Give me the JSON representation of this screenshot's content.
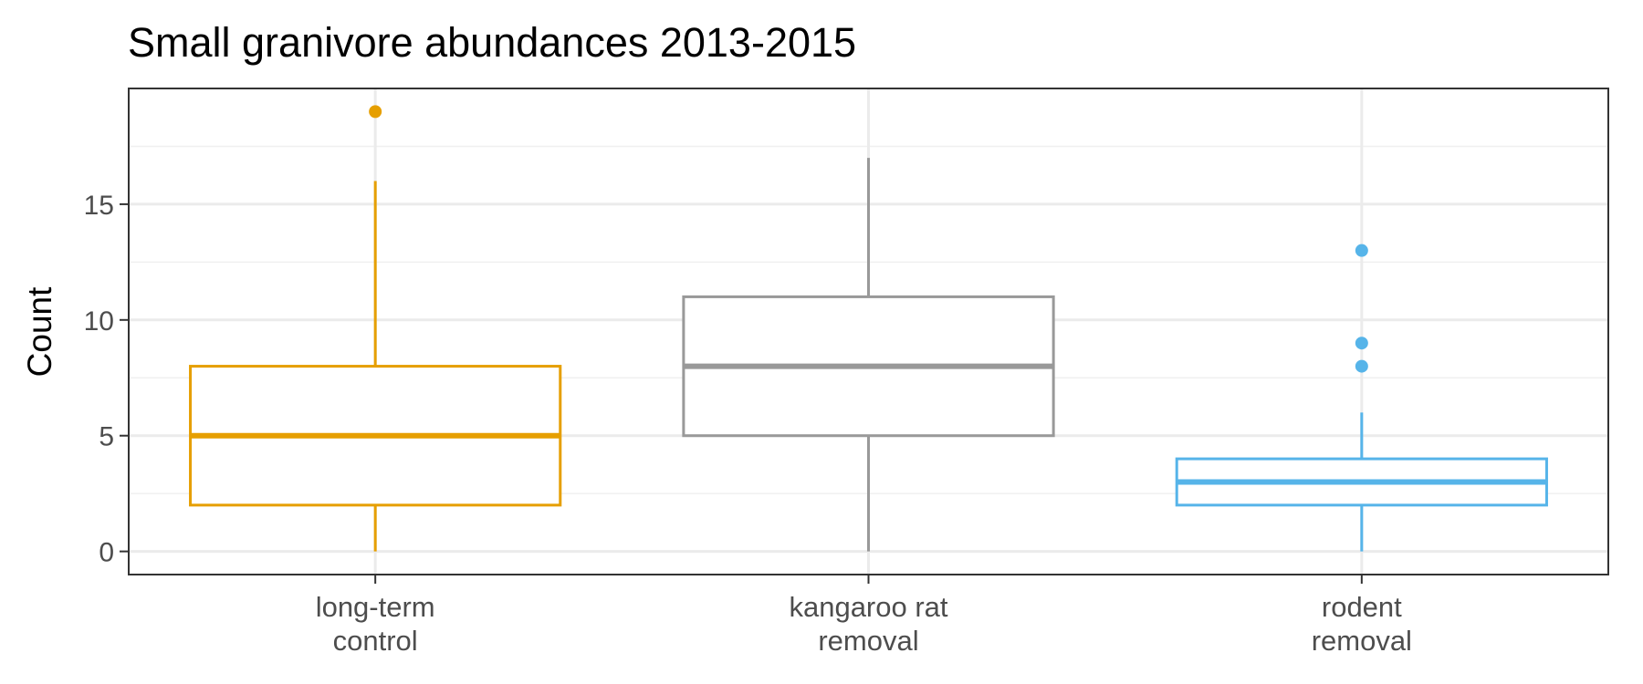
{
  "chart_data": {
    "type": "box",
    "title": "Small granivore abundances 2013-2015",
    "xlabel": "",
    "ylabel": "Count",
    "ylim": [
      -1,
      20
    ],
    "yticks": [
      0,
      5,
      10,
      15
    ],
    "yminor": [
      2.5,
      7.5,
      12.5,
      17.5
    ],
    "grid": true,
    "categories": [
      [
        "long-term",
        "control"
      ],
      [
        "kangaroo rat",
        "removal"
      ],
      [
        "rodent",
        "removal"
      ]
    ],
    "boxes": [
      {
        "color": "#E69F00",
        "whisker_low": 0,
        "q1": 2,
        "median": 5,
        "q3": 8,
        "whisker_high": 16,
        "outliers": [
          19
        ]
      },
      {
        "color": "#999999",
        "whisker_low": 0,
        "q1": 5,
        "median": 8,
        "q3": 11,
        "whisker_high": 17,
        "outliers": []
      },
      {
        "color": "#56B4E9",
        "whisker_low": 0,
        "q1": 2,
        "median": 3,
        "q3": 4,
        "whisker_high": 6,
        "outliers": [
          8,
          9,
          13
        ]
      }
    ]
  }
}
